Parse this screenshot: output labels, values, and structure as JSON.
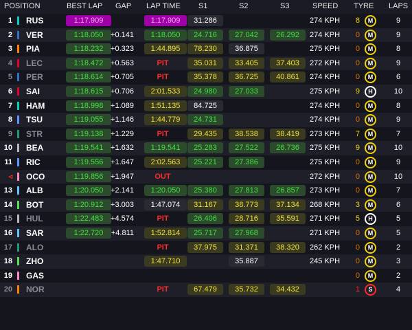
{
  "header": {
    "position": "POSITION",
    "best_lap": "BEST LAP",
    "gap": "GAP",
    "lap_time": "LAP TIME",
    "s1": "S1",
    "s2": "S2",
    "s3": "S3",
    "speed": "SPEED",
    "tyre": "TYRE",
    "laps": "LAPS"
  },
  "colors": {
    "purple": "#a000a8",
    "green": "#43e043",
    "yellow": "#f0e040",
    "pit_red": "#ff2a2a",
    "tyre_medium": "#f2d20a",
    "tyre_soft": "#ff2a2a",
    "tyre_hard": "#ffffff"
  },
  "rows": [
    {
      "pos": "1",
      "code": "RUS",
      "team_color": "#00d2be",
      "best": "1:17.909",
      "best_style": "purple",
      "gap": "",
      "lap": "1:17.909",
      "lap_style": "purple",
      "s1": "31.286",
      "s1_style": "white",
      "s2": "",
      "s2_style": "",
      "s3": "",
      "s3_style": "",
      "speed": "274 KPH",
      "age": "8",
      "tyre": "M",
      "laps": "9",
      "dim": false
    },
    {
      "pos": "2",
      "code": "VER",
      "team_color": "#3671c6",
      "best": "1:18.050",
      "best_style": "green",
      "gap": "+0.141",
      "lap": "1:18.050",
      "lap_style": "green",
      "s1": "24.716",
      "s1_style": "green",
      "s2": "27.042",
      "s2_style": "green",
      "s3": "26.292",
      "s3_style": "green",
      "speed": "274 KPH",
      "age": "0",
      "tyre": "M",
      "laps": "9",
      "dim": false
    },
    {
      "pos": "3",
      "code": "PIA",
      "team_color": "#ff8000",
      "best": "1:18.232",
      "best_style": "green",
      "gap": "+0.323",
      "lap": "1:44.895",
      "lap_style": "yellow",
      "s1": "78.230",
      "s1_style": "yellow",
      "s2": "36.875",
      "s2_style": "white",
      "s3": "",
      "s3_style": "",
      "speed": "275 KPH",
      "age": "0",
      "tyre": "M",
      "laps": "8",
      "dim": false
    },
    {
      "pos": "4",
      "code": "LEC",
      "team_color": "#e8002d",
      "best": "1:18.472",
      "best_style": "green",
      "gap": "+0.563",
      "lap": "PIT",
      "lap_style": "pit",
      "s1": "35.031",
      "s1_style": "yellow",
      "s2": "33.405",
      "s2_style": "yellow",
      "s3": "37.403",
      "s3_style": "yellow",
      "speed": "272 KPH",
      "age": "0",
      "tyre": "M",
      "laps": "9",
      "dim": true
    },
    {
      "pos": "5",
      "code": "PER",
      "team_color": "#3671c6",
      "best": "1:18.614",
      "best_style": "green",
      "gap": "+0.705",
      "lap": "PIT",
      "lap_style": "pit",
      "s1": "35.378",
      "s1_style": "yellow",
      "s2": "36.725",
      "s2_style": "yellow",
      "s3": "40.861",
      "s3_style": "yellow",
      "speed": "274 KPH",
      "age": "0",
      "tyre": "M",
      "laps": "6",
      "dim": true
    },
    {
      "pos": "6",
      "code": "SAI",
      "team_color": "#e8002d",
      "best": "1:18.615",
      "best_style": "green",
      "gap": "+0.706",
      "lap": "2:01.533",
      "lap_style": "yellow",
      "s1": "24.980",
      "s1_style": "green",
      "s2": "27.033",
      "s2_style": "green",
      "s3": "",
      "s3_style": "",
      "speed": "275 KPH",
      "age": "9",
      "tyre": "H",
      "laps": "10",
      "dim": false
    },
    {
      "pos": "7",
      "code": "HAM",
      "team_color": "#00d2be",
      "best": "1:18.998",
      "best_style": "green",
      "gap": "+1.089",
      "lap": "1:51.135",
      "lap_style": "yellow",
      "s1": "84.725",
      "s1_style": "white",
      "s2": "",
      "s2_style": "",
      "s3": "",
      "s3_style": "",
      "speed": "274 KPH",
      "age": "0",
      "tyre": "M",
      "laps": "8",
      "dim": false
    },
    {
      "pos": "8",
      "code": "TSU",
      "team_color": "#6692ff",
      "best": "1:19.055",
      "best_style": "green",
      "gap": "+1.146",
      "lap": "1:44.779",
      "lap_style": "yellow",
      "s1": "24.731",
      "s1_style": "green",
      "s2": "",
      "s2_style": "",
      "s3": "",
      "s3_style": "",
      "speed": "274 KPH",
      "age": "0",
      "tyre": "M",
      "laps": "9",
      "dim": false
    },
    {
      "pos": "9",
      "code": "STR",
      "team_color": "#229971",
      "best": "1:19.138",
      "best_style": "green",
      "gap": "+1.229",
      "lap": "PIT",
      "lap_style": "pit",
      "s1": "29.435",
      "s1_style": "yellow",
      "s2": "38.538",
      "s2_style": "yellow",
      "s3": "38.419",
      "s3_style": "yellow",
      "speed": "273 KPH",
      "age": "7",
      "tyre": "M",
      "laps": "7",
      "dim": true
    },
    {
      "pos": "10",
      "code": "BEA",
      "team_color": "#b6babd",
      "best": "1:19.541",
      "best_style": "green",
      "gap": "+1.632",
      "lap": "1:19.541",
      "lap_style": "green",
      "s1": "25.283",
      "s1_style": "green",
      "s2": "27.522",
      "s2_style": "green",
      "s3": "26.736",
      "s3_style": "green",
      "speed": "275 KPH",
      "age": "9",
      "tyre": "M",
      "laps": "10",
      "dim": false
    },
    {
      "pos": "11",
      "code": "RIC",
      "team_color": "#6692ff",
      "best": "1:19.556",
      "best_style": "green",
      "gap": "+1.647",
      "lap": "2:02.563",
      "lap_style": "yellow",
      "s1": "25.221",
      "s1_style": "green",
      "s2": "27.386",
      "s2_style": "green",
      "s3": "",
      "s3_style": "",
      "speed": "275 KPH",
      "age": "0",
      "tyre": "M",
      "laps": "9",
      "dim": false
    },
    {
      "pos": "◃",
      "code": "OCO",
      "team_color": "#ff87bc",
      "best": "1:19.856",
      "best_style": "green",
      "gap": "+1.947",
      "lap": "OUT",
      "lap_style": "pit",
      "s1": "",
      "s1_style": "",
      "s2": "",
      "s2_style": "",
      "s3": "",
      "s3_style": "",
      "speed": "272 KPH",
      "age": "0",
      "tyre": "M",
      "laps": "10",
      "dim": false
    },
    {
      "pos": "13",
      "code": "ALB",
      "team_color": "#64c4ff",
      "best": "1:20.050",
      "best_style": "green",
      "gap": "+2.141",
      "lap": "1:20.050",
      "lap_style": "green",
      "s1": "25.380",
      "s1_style": "green",
      "s2": "27.813",
      "s2_style": "green",
      "s3": "26.857",
      "s3_style": "green",
      "speed": "273 KPH",
      "age": "0",
      "tyre": "M",
      "laps": "7",
      "dim": false
    },
    {
      "pos": "14",
      "code": "BOT",
      "team_color": "#52e252",
      "best": "1:20.912",
      "best_style": "green",
      "gap": "+3.003",
      "lap": "1:47.074",
      "lap_style": "white",
      "s1": "31.167",
      "s1_style": "yellow",
      "s2": "38.773",
      "s2_style": "yellow",
      "s3": "37.134",
      "s3_style": "yellow",
      "speed": "268 KPH",
      "age": "3",
      "tyre": "M",
      "laps": "6",
      "dim": false
    },
    {
      "pos": "15",
      "code": "HUL",
      "team_color": "#b6babd",
      "best": "1:22.483",
      "best_style": "green",
      "gap": "+4.574",
      "lap": "PIT",
      "lap_style": "pit",
      "s1": "26.406",
      "s1_style": "green",
      "s2": "28.716",
      "s2_style": "yellow",
      "s3": "35.591",
      "s3_style": "yellow",
      "speed": "271 KPH",
      "age": "5",
      "tyre": "H",
      "laps": "5",
      "dim": true
    },
    {
      "pos": "16",
      "code": "SAR",
      "team_color": "#64c4ff",
      "best": "1:22.720",
      "best_style": "green",
      "gap": "+4.811",
      "lap": "1:52.814",
      "lap_style": "yellow",
      "s1": "25.717",
      "s1_style": "green",
      "s2": "27.968",
      "s2_style": "green",
      "s3": "",
      "s3_style": "",
      "speed": "271 KPH",
      "age": "0",
      "tyre": "M",
      "laps": "5",
      "dim": false
    },
    {
      "pos": "17",
      "code": "ALO",
      "team_color": "#229971",
      "best": "",
      "best_style": "",
      "gap": "",
      "lap": "PIT",
      "lap_style": "pit",
      "s1": "37.975",
      "s1_style": "yellow",
      "s2": "31.371",
      "s2_style": "yellow",
      "s3": "38.320",
      "s3_style": "yellow",
      "speed": "262 KPH",
      "age": "0",
      "tyre": "M",
      "laps": "2",
      "dim": true
    },
    {
      "pos": "18",
      "code": "ZHO",
      "team_color": "#52e252",
      "best": "",
      "best_style": "",
      "gap": "",
      "lap": "1:47.710",
      "lap_style": "yellow",
      "s1": "",
      "s1_style": "",
      "s2": "35.887",
      "s2_style": "white",
      "s3": "",
      "s3_style": "",
      "speed": "245 KPH",
      "age": "0",
      "tyre": "M",
      "laps": "3",
      "dim": false
    },
    {
      "pos": "19",
      "code": "GAS",
      "team_color": "#ff87bc",
      "best": "",
      "best_style": "",
      "gap": "",
      "lap": "",
      "lap_style": "",
      "s1": "",
      "s1_style": "",
      "s2": "",
      "s2_style": "",
      "s3": "",
      "s3_style": "",
      "speed": "",
      "age": "0",
      "tyre": "M",
      "laps": "2",
      "dim": false
    },
    {
      "pos": "20",
      "code": "NOR",
      "team_color": "#ff8000",
      "best": "",
      "best_style": "",
      "gap": "",
      "lap": "PIT",
      "lap_style": "pit",
      "s1": "67.479",
      "s1_style": "yellow",
      "s2": "35.732",
      "s2_style": "yellow",
      "s3": "34.432",
      "s3_style": "yellow",
      "speed": "",
      "age": "1",
      "tyre": "S",
      "laps": "4",
      "dim": true
    }
  ]
}
